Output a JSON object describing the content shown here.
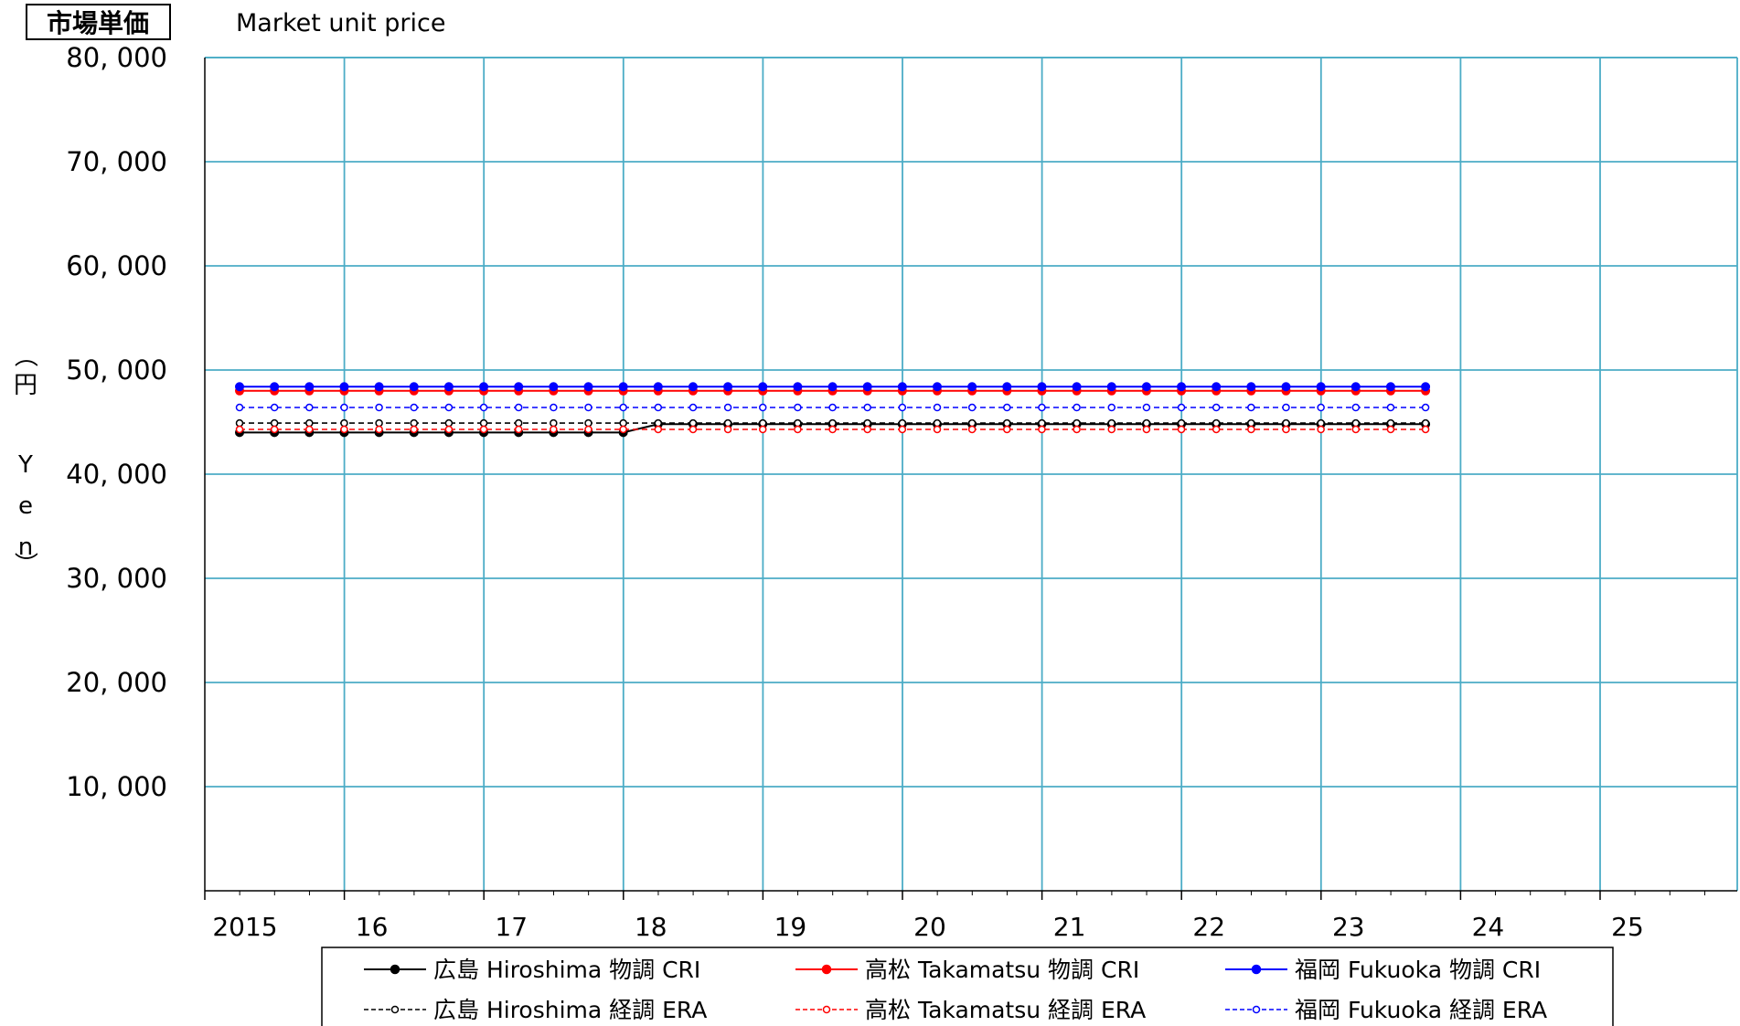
{
  "chart_data": {
    "type": "line",
    "title_jp": "市場単価",
    "title": "Market unit price",
    "ylabel": "（円 Yen）",
    "ylabel_chars": [
      "（",
      "円",
      "",
      "Y",
      "e",
      "n",
      "）"
    ],
    "ylim": [
      0,
      80000
    ],
    "y_ticks": [
      10000,
      20000,
      30000,
      40000,
      50000,
      60000,
      70000,
      80000
    ],
    "y_tick_labels": [
      "10, 000",
      "20, 000",
      "30, 000",
      "40, 000",
      "50, 000",
      "60, 000",
      "70, 000",
      "80, 000"
    ],
    "xlim": [
      2015,
      2026
    ],
    "x_ticks": [
      2016,
      2017,
      2018,
      2019,
      2020,
      2021,
      2022,
      2023,
      2024,
      2025
    ],
    "x_tick_labels": [
      "2015",
      "16",
      "17",
      "18",
      "19",
      "20",
      "21",
      "22",
      "23",
      "24",
      "25"
    ],
    "grid": true,
    "legend_position": "bottom",
    "x": [
      2015.0,
      2015.25,
      2015.5,
      2015.75,
      2016.0,
      2016.25,
      2016.5,
      2016.75,
      2017.0,
      2017.25,
      2017.5,
      2017.75,
      2018.0,
      2018.25,
      2018.5,
      2018.75,
      2019.0,
      2019.25,
      2019.5,
      2019.75,
      2020.0,
      2020.25,
      2020.5,
      2020.75,
      2021.0,
      2021.25,
      2021.5,
      2021.75,
      2022.0,
      2022.25,
      2022.5,
      2022.75,
      2023.0,
      2023.25,
      2023.5
    ],
    "series": [
      {
        "name": "広島 Hiroshima 物調 CRI",
        "color": "#000000",
        "dashed": false,
        "marker": "filled",
        "values": [
          44000,
          44000,
          44000,
          44000,
          44000,
          44000,
          44000,
          44000,
          44000,
          44000,
          44000,
          44000,
          44800,
          44800,
          44800,
          44800,
          44800,
          44800,
          44800,
          44800,
          44800,
          44800,
          44800,
          44800,
          44800,
          44800,
          44800,
          44800,
          44800,
          44800,
          44800,
          44800,
          44800,
          44800,
          44800
        ]
      },
      {
        "name": "高松 Takamatsu 物調 CRI",
        "color": "#ff0000",
        "dashed": false,
        "marker": "filled",
        "values": [
          48000,
          48000,
          48000,
          48000,
          48000,
          48000,
          48000,
          48000,
          48000,
          48000,
          48000,
          48000,
          48000,
          48000,
          48000,
          48000,
          48000,
          48000,
          48000,
          48000,
          48000,
          48000,
          48000,
          48000,
          48000,
          48000,
          48000,
          48000,
          48000,
          48000,
          48000,
          48000,
          48000,
          48000,
          48000
        ]
      },
      {
        "name": "福岡 Fukuoka  物調 CRI",
        "color": "#0000ff",
        "dashed": false,
        "marker": "filled",
        "values": [
          48400,
          48400,
          48400,
          48400,
          48400,
          48400,
          48400,
          48400,
          48400,
          48400,
          48400,
          48400,
          48400,
          48400,
          48400,
          48400,
          48400,
          48400,
          48400,
          48400,
          48400,
          48400,
          48400,
          48400,
          48400,
          48400,
          48400,
          48400,
          48400,
          48400,
          48400,
          48400,
          48400,
          48400,
          48400
        ]
      },
      {
        "name": "広島 Hiroshima 経調 ERA",
        "color": "#000000",
        "dashed": true,
        "marker": "open",
        "values": [
          44900,
          44900,
          44900,
          44900,
          44900,
          44900,
          44900,
          44900,
          44900,
          44900,
          44900,
          44900,
          44900,
          44900,
          44900,
          44900,
          44900,
          44900,
          44900,
          44900,
          44900,
          44900,
          44900,
          44900,
          44900,
          44900,
          44900,
          44900,
          44900,
          44900,
          44900,
          44900,
          44900,
          44900,
          44900
        ]
      },
      {
        "name": "高松 Takamatsu 経調 ERA",
        "color": "#ff0000",
        "dashed": true,
        "marker": "open",
        "values": [
          44300,
          44300,
          44300,
          44300,
          44300,
          44300,
          44300,
          44300,
          44300,
          44300,
          44300,
          44300,
          44300,
          44300,
          44300,
          44300,
          44300,
          44300,
          44300,
          44300,
          44300,
          44300,
          44300,
          44300,
          44300,
          44300,
          44300,
          44300,
          44300,
          44300,
          44300,
          44300,
          44300,
          44300,
          44300
        ]
      },
      {
        "name": "福岡 Fukuoka  経調 ERA",
        "color": "#0000ff",
        "dashed": true,
        "marker": "open",
        "values": [
          46400,
          46400,
          46400,
          46400,
          46400,
          46400,
          46400,
          46400,
          46400,
          46400,
          46400,
          46400,
          46400,
          46400,
          46400,
          46400,
          46400,
          46400,
          46400,
          46400,
          46400,
          46400,
          46400,
          46400,
          46400,
          46400,
          46400,
          46400,
          46400,
          46400,
          46400,
          46400,
          46400,
          46400,
          46400
        ]
      }
    ],
    "colors": {
      "grid": "#4bacc6",
      "frame": "#000000"
    }
  }
}
